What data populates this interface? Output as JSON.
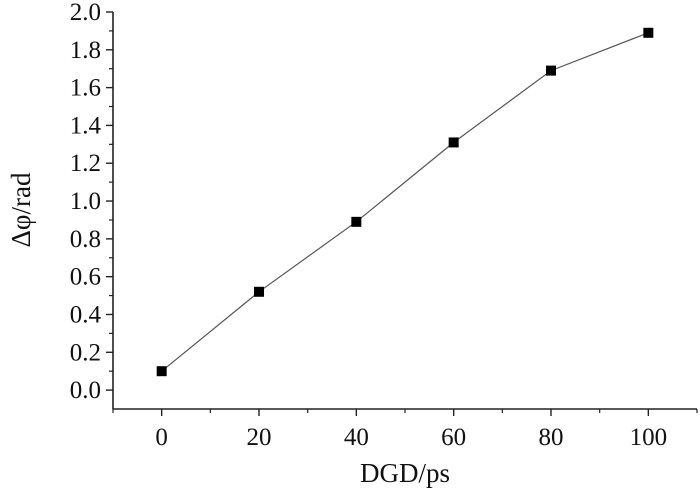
{
  "chart_data": {
    "type": "line",
    "xlabel": "DGD/ps",
    "ylabel": "Δφ/rad",
    "xlim": [
      -10,
      110
    ],
    "ylim": [
      -0.1,
      2.0
    ],
    "x_ticks": [
      0,
      20,
      40,
      60,
      80,
      100
    ],
    "x_tick_labels": [
      "0",
      "20",
      "40",
      "60",
      "80",
      "100"
    ],
    "y_ticks": [
      0.0,
      0.2,
      0.4,
      0.6,
      0.8,
      1.0,
      1.2,
      1.4,
      1.6,
      1.8,
      2.0
    ],
    "y_tick_labels": [
      "0.0",
      "0.2",
      "0.4",
      "0.6",
      "0.8",
      "1.0",
      "1.2",
      "1.4",
      "1.6",
      "1.8",
      "2.0"
    ],
    "grid": false,
    "marker": "square",
    "colors": {
      "line": "#555555",
      "marker": "#000000",
      "axis": "#222222"
    },
    "series": [
      {
        "x": [
          0,
          20,
          40,
          60,
          80,
          100
        ],
        "y": [
          0.1,
          0.52,
          0.89,
          1.31,
          1.69,
          1.89
        ]
      }
    ]
  }
}
